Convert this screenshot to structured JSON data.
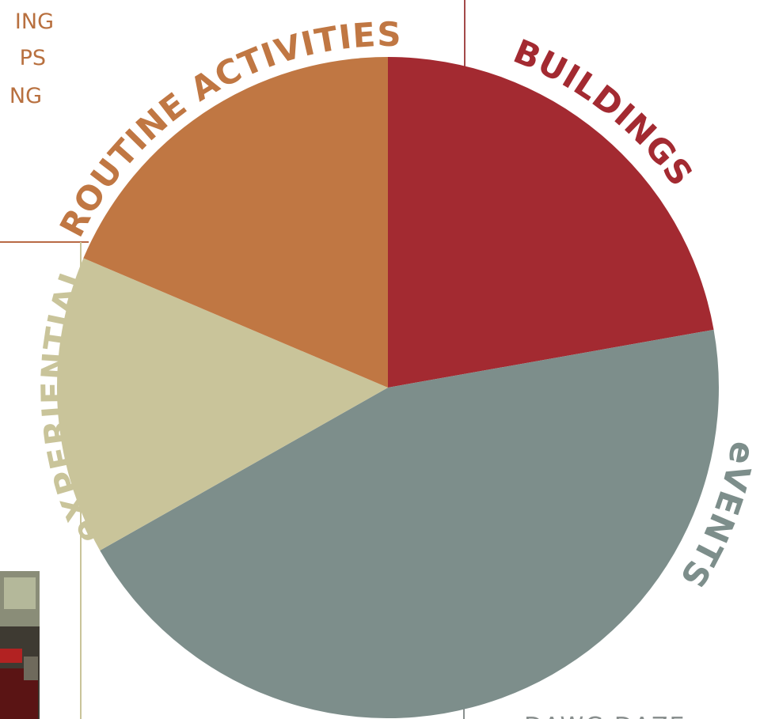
{
  "side_texts": [
    "ING",
    "PS",
    "NG"
  ],
  "footer_text": "DAWG DAZE",
  "chart_data": {
    "type": "pie",
    "categories": [
      "BUILDINGS",
      "eVENTS",
      "eXPERIENTIAL",
      "ROUTINE ACTIVITIES"
    ],
    "values": [
      22.2,
      44.6,
      14.6,
      18.6
    ],
    "colors": [
      "#a32a31",
      "#7d8e8b",
      "#c9c49a",
      "#c07743"
    ],
    "start_angle": 0,
    "direction": "clockwise"
  }
}
